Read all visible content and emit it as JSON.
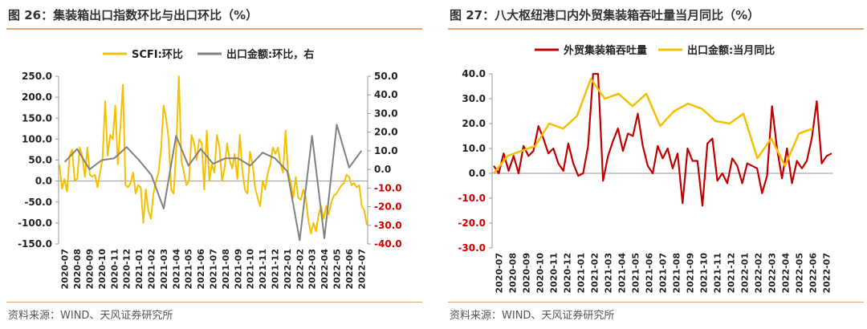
{
  "left": {
    "title": "图 26：集装箱出口指数环比与出口环比（%）",
    "source": "资料来源：WIND、天风证券研究所"
  },
  "right": {
    "title": "图 27：八大枢纽港口内外贸集装箱吞吐量当月同比（%）",
    "source": "资料来源：WIND、天风证券研究所"
  },
  "chart_data": [
    {
      "type": "line",
      "x_labels": [
        "2020-07",
        "2020-08",
        "2020-09",
        "2020-10",
        "2020-11",
        "2020-12",
        "2021-01",
        "2021-02",
        "2021-03",
        "2021-04",
        "2021-05",
        "2021-06",
        "2021-07",
        "2021-08",
        "2021-09",
        "2021-10",
        "2021-11",
        "2021-12",
        "2022-01",
        "2022-02",
        "2022-03",
        "2022-04",
        "2022-05",
        "2022-06",
        "2022-07"
      ],
      "left_axis": {
        "min": -150,
        "max": 250,
        "ticks": [
          "250.0",
          "200.0",
          "150.0",
          "100.0",
          "50.0",
          "0.0",
          "-50.0",
          "-100.0",
          "-150.0"
        ]
      },
      "right_axis": {
        "min": -40,
        "max": 50,
        "ticks": [
          "50.0",
          "40.0",
          "30.0",
          "20.0",
          "10.0",
          "0.0",
          "-10.0",
          "-20.0",
          "-30.0",
          "-40.0"
        ]
      },
      "series": [
        {
          "name": "SCFI:环比",
          "axis": "left",
          "color": "#f5c000",
          "values": [
            40,
            -18,
            5,
            -25,
            60,
            75,
            2,
            5,
            80,
            60,
            10,
            80,
            15,
            10,
            15,
            -15,
            20,
            55,
            190,
            60,
            110,
            100,
            180,
            40,
            130,
            230,
            -10,
            -15,
            -5,
            20,
            -30,
            -10,
            -15,
            -100,
            -20,
            -70,
            -90,
            -30,
            0,
            20,
            75,
            180,
            150,
            100,
            -20,
            -30,
            80,
            250,
            50,
            20,
            -10,
            0,
            110,
            90,
            50,
            100,
            90,
            -20,
            120,
            0,
            40,
            20,
            110,
            80,
            0,
            30,
            90,
            50,
            30,
            65,
            5,
            110,
            25,
            -20,
            -30,
            70,
            40,
            -15,
            -40,
            -60,
            0,
            -20,
            20,
            40,
            80,
            65,
            80,
            40,
            20,
            120,
            20,
            0,
            -40,
            10,
            -40,
            -45,
            -20,
            -40,
            -95,
            -125,
            -100,
            -120,
            -80,
            -60,
            -90,
            -60,
            -80,
            -50,
            -35,
            -30,
            -20,
            -10,
            -5,
            15,
            10,
            -10,
            -5,
            -15,
            -10,
            -60,
            -70,
            -105
          ]
        },
        {
          "name": "出口金额:环比，右",
          "axis": "right",
          "color": "#808080",
          "values": [
            4,
            11,
            0,
            5,
            6,
            12,
            5,
            -3,
            -21,
            18,
            2,
            11,
            3,
            6,
            6,
            2,
            9,
            6,
            -1,
            -38,
            18,
            -37,
            24,
            1,
            10
          ]
        }
      ]
    },
    {
      "type": "line",
      "x_labels": [
        "2020-07",
        "2020-08",
        "2020-09",
        "2020-10",
        "2020-11",
        "2020-12",
        "2021-01",
        "2021-02",
        "2021-03",
        "2021-04",
        "2021-05",
        "2021-06",
        "2021-07",
        "2021-08",
        "2021-09",
        "2021-10",
        "2021-11",
        "2021-12",
        "2022-01",
        "2022-02",
        "2022-03",
        "2022-04",
        "2022-05",
        "2022-06",
        "2022-07"
      ],
      "y_axis": {
        "min": -30,
        "max": 40,
        "ticks": [
          "40.0",
          "30.0",
          "20.0",
          "10.0",
          "0.0",
          "-10.0",
          "-20.0",
          "-30.0"
        ]
      },
      "series": [
        {
          "name": "外贸集装箱吞吐量",
          "color": "#c00000",
          "values": [
            3,
            0,
            8,
            1,
            7,
            0,
            11,
            7,
            9,
            19,
            14,
            8,
            10,
            4,
            1,
            12,
            4,
            -1,
            0,
            11,
            40,
            41,
            -3,
            7,
            13,
            18,
            9,
            16,
            15,
            24,
            11,
            3,
            0,
            11,
            6,
            10,
            2,
            8,
            -12,
            10,
            5,
            5,
            -13,
            12,
            14,
            -3,
            0,
            -4,
            6,
            3,
            -4,
            4,
            3,
            2,
            -8,
            -1,
            27,
            10,
            -2,
            10,
            -4,
            5,
            2,
            5,
            14,
            29,
            4,
            7,
            8
          ]
        },
        {
          "name": "出口金额:当月同比",
          "color": "#f5c000",
          "values": [
            0,
            7,
            9,
            11,
            20,
            18,
            23,
            38,
            30,
            32,
            27,
            32,
            19,
            25,
            28,
            26,
            21,
            20,
            24,
            6,
            14,
            3,
            16,
            18
          ]
        }
      ]
    }
  ]
}
